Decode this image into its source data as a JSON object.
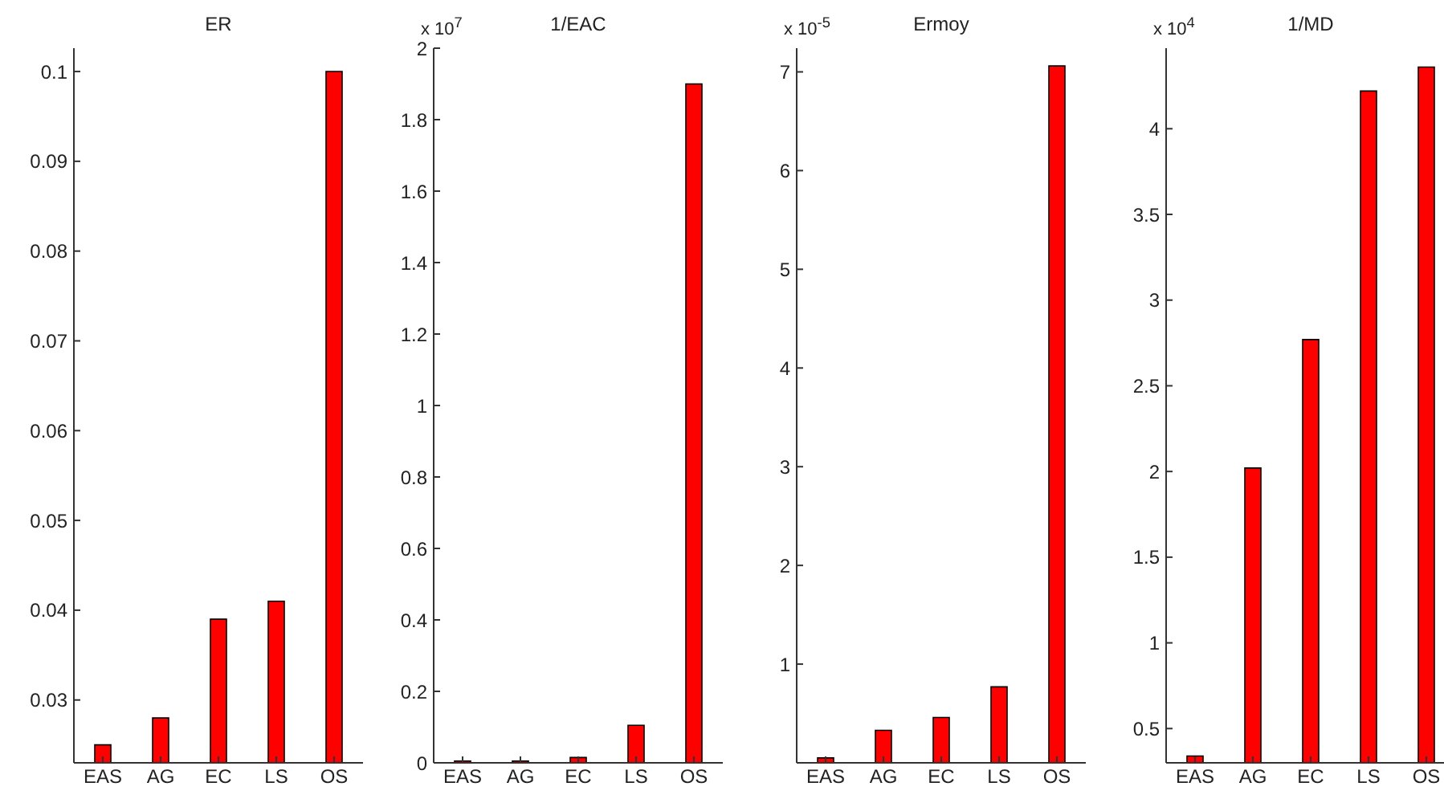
{
  "chart_data": [
    {
      "type": "bar",
      "title": "ER",
      "categories": [
        "EAS",
        "AG",
        "EC",
        "LS",
        "OS"
      ],
      "values": [
        0.025,
        0.028,
        0.039,
        0.041,
        0.1
      ],
      "color": "#ff0000",
      "ylim": [
        0.023,
        0.1026
      ],
      "yticks": [
        0.03,
        0.04,
        0.05,
        0.06,
        0.07,
        0.08,
        0.09,
        0.1
      ]
    },
    {
      "type": "bar",
      "title": "1/EAC",
      "categories": [
        "EAS",
        "AG",
        "EC",
        "LS",
        "OS"
      ],
      "values": [
        0.005,
        0.005,
        0.015,
        0.105,
        1.9
      ],
      "color": "#ff0000",
      "ylim": [
        0,
        2
      ],
      "yticks": [
        0,
        0.2,
        0.4,
        0.6,
        0.8,
        1,
        1.2,
        1.4,
        1.6,
        1.8,
        2
      ],
      "annotations": [
        "x 10$^{7}$"
      ]
    },
    {
      "type": "bar",
      "title": "Ermoy",
      "categories": [
        "EAS",
        "AG",
        "EC",
        "LS",
        "OS"
      ],
      "values": [
        0.05,
        0.33,
        0.46,
        0.77,
        7.06
      ],
      "color": "#ff0000",
      "ylim": [
        0,
        7.24
      ],
      "yticks": [
        1,
        2,
        3,
        4,
        5,
        6,
        7
      ],
      "annotations": [
        "x 10$^{-5}$"
      ]
    },
    {
      "type": "bar",
      "title": "1/MD",
      "categories": [
        "EAS",
        "AG",
        "EC",
        "LS",
        "OS"
      ],
      "values": [
        0.34,
        2.02,
        2.77,
        4.22,
        4.36
      ],
      "color": "#ff0000",
      "ylim": [
        0.3,
        4.47
      ],
      "yticks": [
        0.5,
        1,
        1.5,
        2,
        2.5,
        3,
        3.5,
        4
      ],
      "annotations": [
        "x 10$^{4}$"
      ]
    }
  ]
}
